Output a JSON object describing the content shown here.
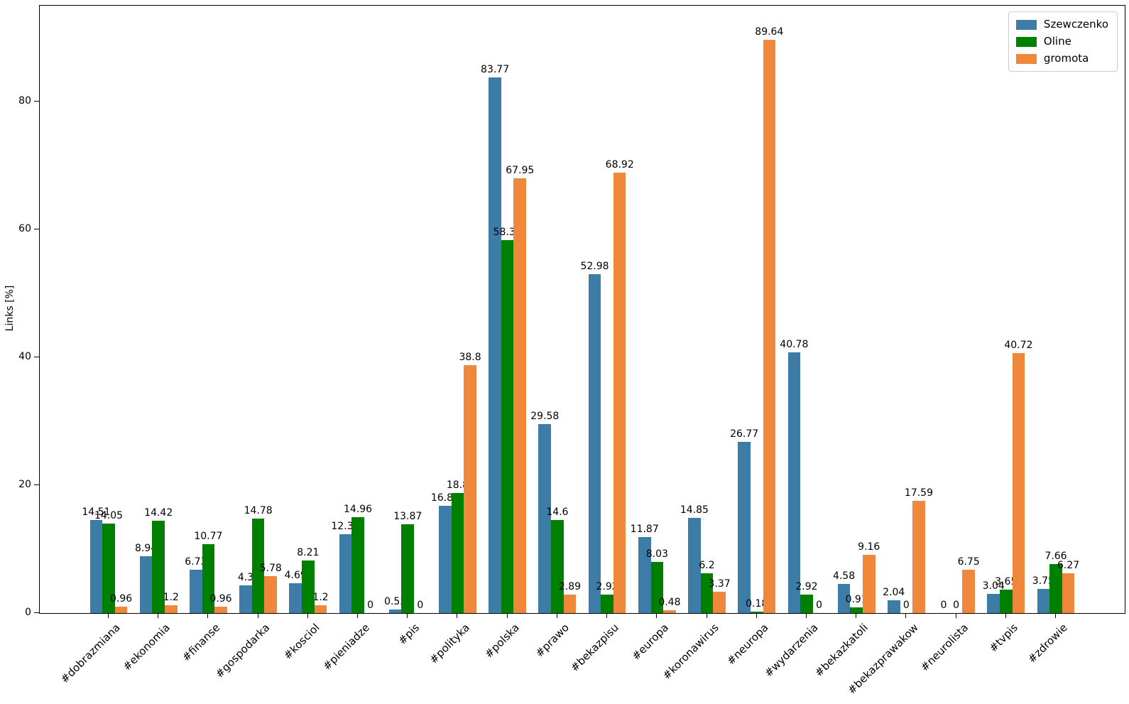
{
  "chart_data": {
    "type": "bar",
    "title": "",
    "xlabel": "",
    "ylabel": "Links [%]",
    "ylim": [
      0,
      95
    ],
    "yticks": [
      0,
      20,
      40,
      60,
      80
    ],
    "grid": false,
    "legend_position": "upper right",
    "categories": [
      "#dobrazmiana",
      "#ekonomia",
      "#finanse",
      "#gospodarka",
      "#kosciol",
      "#pieniadze",
      "#pis",
      "#polityka",
      "#polska",
      "#prawo",
      "#bekazpisu",
      "#europa",
      "#koronawirus",
      "#neuropa",
      "#wydarzenia",
      "#bekazkatoli",
      "#bekazprawakow",
      "#neurolista",
      "#tvpis",
      "#zdrowie"
    ],
    "series": [
      {
        "name": "Szewczenko",
        "color": "#3d7ca6",
        "values": [
          14.51,
          8.94,
          6.73,
          4.3,
          4.69,
          12.36,
          0.55,
          16.83,
          83.77,
          29.58,
          52.98,
          11.87,
          14.85,
          26.77,
          40.78,
          4.58,
          2.04,
          0,
          3.04,
          3.75
        ]
      },
      {
        "name": "Oline",
        "color": "#008000",
        "values": [
          14.05,
          14.42,
          10.77,
          14.78,
          8.21,
          14.96,
          13.87,
          18.8,
          58.39,
          14.6,
          2.92,
          8.03,
          6.2,
          0.18,
          2.92,
          0.91,
          0,
          0,
          3.65,
          7.66
        ]
      },
      {
        "name": "gromota",
        "color": "#f0883c",
        "values": [
          0.96,
          1.2,
          0.96,
          5.78,
          1.2,
          0,
          0,
          38.8,
          67.95,
          2.89,
          68.92,
          0.48,
          3.37,
          89.64,
          0,
          9.16,
          17.59,
          6.75,
          40.72,
          6.27
        ]
      }
    ]
  }
}
